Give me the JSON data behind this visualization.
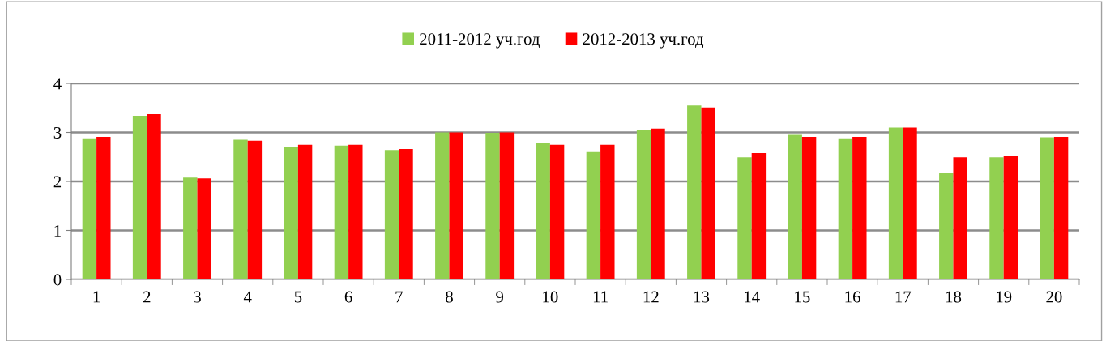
{
  "chart_data": {
    "type": "bar",
    "categories": [
      "1",
      "2",
      "3",
      "4",
      "5",
      "6",
      "7",
      "8",
      "9",
      "10",
      "11",
      "12",
      "13",
      "14",
      "15",
      "16",
      "17",
      "18",
      "19",
      "20"
    ],
    "series": [
      {
        "name": "2011-2012 уч.год",
        "color": "#92d050",
        "values": [
          2.88,
          3.34,
          2.08,
          2.85,
          2.7,
          2.73,
          2.64,
          3.0,
          2.99,
          2.79,
          2.6,
          3.05,
          3.55,
          2.49,
          2.95,
          2.88,
          3.1,
          2.18,
          2.49,
          2.9
        ]
      },
      {
        "name": "2012-2013 уч.год",
        "color": "#ff0000",
        "values": [
          2.91,
          3.37,
          2.06,
          2.83,
          2.75,
          2.75,
          2.66,
          3.0,
          3.0,
          2.75,
          2.75,
          3.08,
          3.51,
          2.58,
          2.91,
          2.91,
          3.1,
          2.49,
          2.53,
          2.91
        ]
      }
    ],
    "ylim": [
      0,
      4
    ],
    "yticks": [
      0,
      1,
      2,
      3,
      4
    ],
    "grid": "y",
    "legend": "top"
  }
}
